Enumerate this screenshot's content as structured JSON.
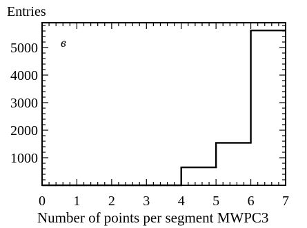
{
  "chart_data": {
    "type": "histogram",
    "title": "",
    "panel_label": "в",
    "xlabel": "Number of points per segment MWPC3",
    "ylabel": "Entries",
    "xlim": [
      0,
      7
    ],
    "ylim": [
      0,
      5900
    ],
    "bin_edges": [
      0,
      1,
      2,
      3,
      4,
      5,
      6,
      7
    ],
    "values": [
      0,
      0,
      0,
      0,
      650,
      1540,
      5620
    ],
    "xticks": [
      "0",
      "1",
      "2",
      "3",
      "4",
      "5",
      "6",
      "7"
    ],
    "yticks": [
      "1000",
      "2000",
      "3000",
      "4000",
      "5000"
    ],
    "grid": false,
    "legend": "none"
  }
}
